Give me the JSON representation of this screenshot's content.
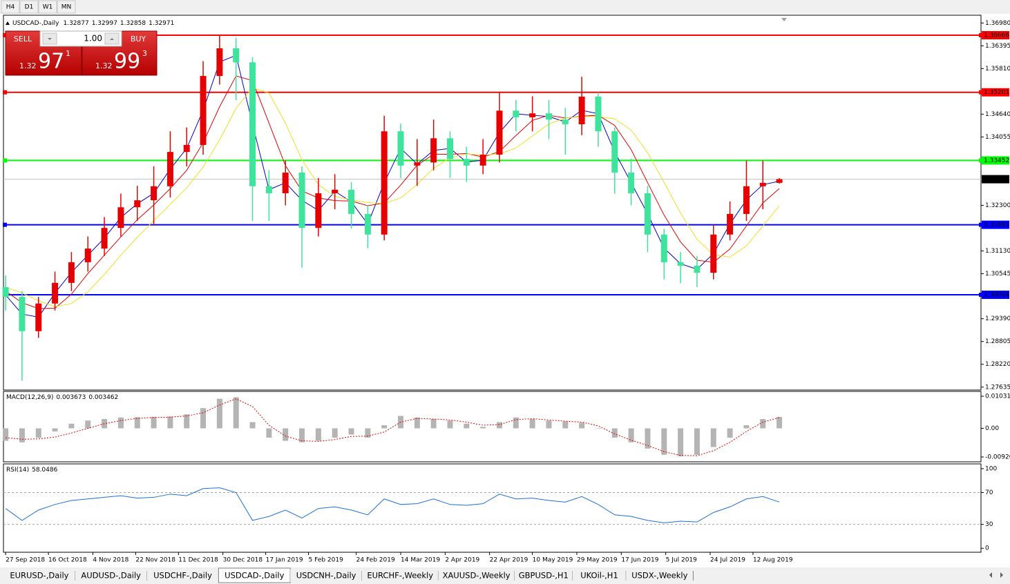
{
  "toolbar": {
    "buttons": [
      "H4",
      "D1",
      "W1",
      "MN"
    ]
  },
  "trade_panel": {
    "sell": "SELL",
    "buy": "BUY",
    "lot": "1.00",
    "bid": {
      "prefix": "1.32",
      "big": "97",
      "sup": "1"
    },
    "ask": {
      "prefix": "1.32",
      "big": "99",
      "sup": "3"
    }
  },
  "chart_data": [
    {
      "type": "candlestick",
      "symbol": "USDCAD-,Daily",
      "quote": [
        1.32877,
        1.32997,
        1.32858,
        1.32971
      ],
      "xlim": [
        -0.13,
        59.25
      ],
      "ylim": [
        1.2756,
        1.3718
      ],
      "yticks": [
        {
          "value": 1.3698,
          "label": "1.36980"
        },
        1.36395,
        {
          "value": 1.3581,
          "label": "1.35810"
        },
        {
          "value": 1.3464,
          "label": "1.34640"
        },
        1.34055,
        {
          "value": 1.323,
          "label": "1.32300"
        },
        {
          "value": 1.3113,
          "label": "1.31130"
        },
        1.30545,
        {
          "value": 1.2939,
          "label": "1.29390"
        },
        1.28805,
        {
          "value": 1.2822,
          "label": "1.28220"
        },
        1.27635
      ],
      "up_color": "#e60000",
      "down_color": "#3ee39c",
      "open": [
        1.302,
        1.2995,
        1.2907,
        1.2978,
        1.3031,
        1.3084,
        1.3119,
        1.3172,
        1.3225,
        1.3243,
        1.3279,
        1.3367,
        1.3385,
        1.3562,
        1.3633,
        1.3597,
        1.3279,
        1.3261,
        1.3314,
        1.3172,
        1.3261,
        1.327,
        1.3208,
        1.3155,
        1.342,
        1.3332,
        1.334,
        1.3402,
        1.3349,
        1.3332,
        1.336,
        1.3473,
        1.3456,
        1.3466,
        1.345,
        1.3438,
        1.3509,
        1.342,
        1.3314,
        1.3261,
        1.3155,
        1.3084,
        1.3075,
        1.3057,
        1.3155,
        1.3208,
        1.3279,
        1.32877
      ],
      "high": [
        1.305,
        1.301,
        1.2995,
        1.306,
        1.311,
        1.315,
        1.32,
        1.326,
        1.328,
        1.333,
        1.342,
        1.343,
        1.36,
        1.3665,
        1.366,
        1.361,
        1.332,
        1.3345,
        1.333,
        1.33,
        1.331,
        1.329,
        1.323,
        1.346,
        1.344,
        1.34,
        1.345,
        1.342,
        1.338,
        1.34,
        1.352,
        1.35,
        1.351,
        1.35,
        1.348,
        1.356,
        1.352,
        1.343,
        1.335,
        1.328,
        1.317,
        1.311,
        1.31,
        1.318,
        1.324,
        1.3345,
        1.3345,
        1.32997
      ],
      "low": [
        1.296,
        1.278,
        1.289,
        1.296,
        1.301,
        1.306,
        1.31,
        1.315,
        1.319,
        1.318,
        1.325,
        1.333,
        1.336,
        1.354,
        1.35,
        1.319,
        1.319,
        1.323,
        1.307,
        1.315,
        1.322,
        1.317,
        1.312,
        1.314,
        1.33,
        1.328,
        1.332,
        1.33,
        1.329,
        1.331,
        1.334,
        1.342,
        1.342,
        1.34,
        1.336,
        1.341,
        1.338,
        1.326,
        1.323,
        1.311,
        1.304,
        1.303,
        1.302,
        1.304,
        1.314,
        1.319,
        1.322,
        1.32858
      ],
      "close": [
        1.2995,
        1.2907,
        1.2978,
        1.3031,
        1.3084,
        1.3119,
        1.3172,
        1.3225,
        1.3243,
        1.3279,
        1.3367,
        1.3385,
        1.3562,
        1.3633,
        1.3597,
        1.3279,
        1.3261,
        1.3314,
        1.3172,
        1.3261,
        1.327,
        1.3208,
        1.3155,
        1.342,
        1.3332,
        1.334,
        1.3402,
        1.3349,
        1.3332,
        1.336,
        1.3473,
        1.3456,
        1.3466,
        1.345,
        1.3438,
        1.3509,
        1.342,
        1.3314,
        1.3261,
        1.3155,
        1.3084,
        1.3075,
        1.3057,
        1.3155,
        1.3208,
        1.3279,
        1.32877,
        1.32971
      ],
      "overlays": [
        {
          "color": "#0000c8",
          "values": [
            1.3,
            1.2951,
            1.2943,
            1.3005,
            1.3058,
            1.3102,
            1.3146,
            1.3199,
            1.3234,
            1.3261,
            1.3323,
            1.3376,
            1.3474,
            1.3598,
            1.3615,
            1.3438,
            1.327,
            1.3288,
            1.3243,
            1.3217,
            1.3266,
            1.3239,
            1.3182,
            1.3288,
            1.3376,
            1.3336,
            1.3371,
            1.3376,
            1.3341,
            1.3346,
            1.3417,
            1.3465,
            1.3461,
            1.3458,
            1.3444,
            1.3474,
            1.3465,
            1.3367,
            1.3288,
            1.3208,
            1.312,
            1.308,
            1.3066,
            1.3106,
            1.3182,
            1.3244,
            1.3283,
            1.3292
          ]
        },
        {
          "color": "#e00000",
          "values": [
            1.301,
            1.298,
            1.2965,
            1.2966,
            1.3002,
            1.3055,
            1.3102,
            1.3149,
            1.3193,
            1.3231,
            1.3273,
            1.332,
            1.3391,
            1.3483,
            1.3562,
            1.355,
            1.3441,
            1.3332,
            1.3267,
            1.3249,
            1.3242,
            1.3241,
            1.3229,
            1.3236,
            1.3282,
            1.3333,
            1.3361,
            1.3361,
            1.3363,
            1.3354,
            1.3368,
            1.3409,
            1.3448,
            1.3461,
            1.3454,
            1.3459,
            1.3461,
            1.3435,
            1.3373,
            1.3288,
            1.3205,
            1.3136,
            1.3089,
            1.3084,
            1.3118,
            1.3177,
            1.3236,
            1.3273
          ]
        },
        {
          "color": "#f0e020",
          "values": [
            1.302,
            1.3005,
            1.2985,
            1.297,
            1.2978,
            1.3008,
            1.3053,
            1.3102,
            1.3148,
            1.3191,
            1.3232,
            1.3275,
            1.3328,
            1.3398,
            1.3479,
            1.3532,
            1.3518,
            1.3441,
            1.3347,
            1.3283,
            1.3253,
            1.3244,
            1.3237,
            1.3235,
            1.3249,
            1.3284,
            1.3325,
            1.3352,
            1.3362,
            1.3359,
            1.3362,
            1.3377,
            1.3408,
            1.3439,
            1.3454,
            1.3458,
            1.3458,
            1.3452,
            1.3423,
            1.3365,
            1.3289,
            1.321,
            1.3143,
            1.3103,
            1.3097,
            1.3126,
            1.3177,
            1.3229
          ]
        }
      ],
      "levels": [
        {
          "value": 1.36666,
          "color": "#ff0000",
          "box": "#ff0000"
        },
        {
          "value": 1.35201,
          "color": "#ff0000",
          "box": "#ff0000"
        },
        {
          "value": 1.33452,
          "color": "#00ff00",
          "box": "#00ff00"
        },
        {
          "value": 1.31801,
          "color": "#0000ff",
          "box": "#0000ff"
        },
        {
          "value": 1.30004,
          "color": "#0000ff",
          "box": "#0000ff"
        },
        {
          "value": 1.32971,
          "color": "#c0c0c0",
          "box": "#000000"
        }
      ]
    },
    {
      "type": "macd",
      "label": "MACD(12,26,9)",
      "current": [
        0.003673,
        0.003462
      ],
      "xlim": [
        -0.13,
        59.25
      ],
      "ylim": [
        -0.01076,
        0.01187
      ],
      "yticks": [
        0.010317,
        {
          "value": 0,
          "label": "0.00"
        },
        -0.009203
      ],
      "histogram_color": "#b4b4b4",
      "signal_color": "#e00000",
      "histogram": [
        -0.004,
        -0.0045,
        -0.003,
        -0.001,
        0.0015,
        0.0025,
        0.003,
        0.0035,
        0.0036,
        0.0037,
        0.0038,
        0.0045,
        0.0065,
        0.0095,
        0.01,
        0.002,
        -0.003,
        -0.004,
        -0.0045,
        -0.004,
        -0.003,
        -0.002,
        -0.003,
        0.001,
        0.004,
        0.0035,
        0.003,
        0.0025,
        0.0015,
        0.0005,
        0.002,
        0.0035,
        0.003,
        0.0025,
        0.0022,
        0.0018,
        0.0,
        -0.003,
        -0.0045,
        -0.0065,
        -0.0085,
        -0.009,
        -0.0085,
        -0.006,
        -0.003,
        0.001,
        0.003,
        0.003673
      ],
      "signal": [
        -0.003,
        -0.0035,
        -0.0034,
        -0.0028,
        -0.0015,
        0.0,
        0.0015,
        0.0025,
        0.0032,
        0.0035,
        0.0036,
        0.004,
        0.005,
        0.0075,
        0.0095,
        0.007,
        0.001,
        -0.0025,
        -0.004,
        -0.0042,
        -0.0036,
        -0.0026,
        -0.0025,
        -0.0012,
        0.002,
        0.0032,
        0.003,
        0.0027,
        0.002,
        0.001,
        0.0012,
        0.0028,
        0.0031,
        0.0027,
        0.0023,
        0.002,
        0.0008,
        -0.0018,
        -0.0038,
        -0.0055,
        -0.0075,
        -0.0087,
        -0.0088,
        -0.0072,
        -0.0045,
        -0.001,
        0.002,
        0.003462
      ]
    },
    {
      "type": "rsi",
      "label": "RSI(14)",
      "current": 58.0486,
      "xlim": [
        -0.13,
        59.25
      ],
      "ylim": [
        -5,
        106
      ],
      "yticks": [
        100,
        70,
        30,
        0
      ],
      "levels": [
        70,
        30
      ],
      "color": "#1e6fd9",
      "values": [
        50,
        35,
        48,
        55,
        60,
        62,
        64,
        66,
        63,
        64,
        68,
        66,
        75,
        76,
        70,
        35,
        40,
        48,
        38,
        50,
        52,
        48,
        42,
        62,
        55,
        56,
        62,
        55,
        54,
        56,
        68,
        62,
        63,
        60,
        58,
        65,
        55,
        42,
        40,
        35,
        32,
        34,
        33,
        45,
        52,
        62,
        65,
        58.0486
      ],
      "xticks": [
        {
          "value": 0,
          "label": "27 Sep 2018"
        },
        {
          "value": 2.6,
          "label": "16 Oct 2018"
        },
        {
          "value": 5.3,
          "label": "4 Nov 2018"
        },
        {
          "value": 7.9,
          "label": "22 Nov 2018"
        },
        {
          "value": 10.5,
          "label": "11 Dec 2018"
        },
        {
          "value": 13.2,
          "label": "30 Dec 2018"
        },
        {
          "value": 15.8,
          "label": "17 Jan 2019"
        },
        {
          "value": 18.4,
          "label": "5 Feb 2019"
        },
        {
          "value": 21.3,
          "label": "24 Feb 2019"
        },
        {
          "value": 24,
          "label": "14 Mar 2019"
        },
        {
          "value": 26.7,
          "label": "2 Apr 2019"
        },
        {
          "value": 29.4,
          "label": "22 Apr 2019"
        },
        {
          "value": 32,
          "label": "10 May 2019"
        },
        {
          "value": 34.7,
          "label": "29 May 2019"
        },
        {
          "value": 37.4,
          "label": "17 Jun 2019"
        },
        {
          "value": 40.1,
          "label": "5 Jul 2019"
        },
        {
          "value": 42.8,
          "label": "24 Jul 2019"
        },
        {
          "value": 45.4,
          "label": "12 Aug 2019"
        }
      ]
    }
  ],
  "tabs": {
    "items": [
      "EURUSD-,Daily",
      "AUDUSD-,Daily",
      "USDCHF-,Daily",
      "USDCAD-,Daily",
      "USDCNH-,Daily",
      "EURCHF-,Weekly",
      "XAUUSD-,Weekly",
      "GBPUSD-,H1",
      "UKOil-,H1",
      "USDX-,Weekly"
    ],
    "active": 3
  }
}
